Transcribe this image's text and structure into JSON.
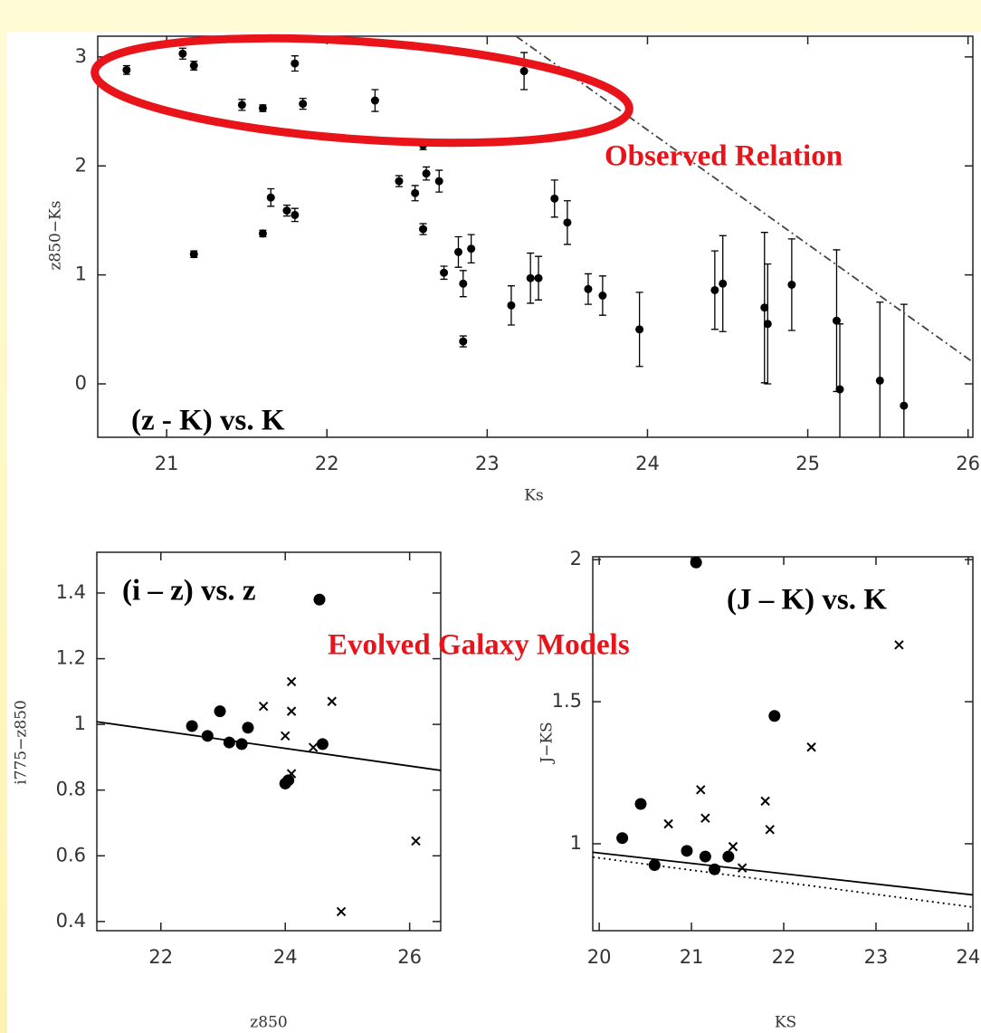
{
  "slide_labels": [
    "Evolved Galaxy Models"
  ],
  "chart_data": [
    {
      "type": "scatter",
      "xlabel": "Ks",
      "ylabel": "z850−Ks",
      "xlim": [
        20.57,
        26.03
      ],
      "ylim": [
        -0.49,
        3.19
      ],
      "xticks": [
        21,
        22,
        23,
        24,
        25,
        26
      ],
      "yticks": [
        0,
        1,
        2,
        3
      ],
      "annotations": [
        {
          "text": "Observed Relation",
          "color": "#e8141a"
        },
        {
          "text": "(z - K) vs. K",
          "color": "#000000"
        }
      ],
      "series": [
        {
          "marker": "dot",
          "color": "#000000",
          "x": [
            20.75,
            21.1,
            21.17,
            21.17,
            21.47,
            21.6,
            21.6,
            21.65,
            21.75,
            21.8,
            21.8,
            21.85,
            22.3,
            22.45,
            22.55,
            22.6,
            22.6,
            22.62,
            22.7,
            22.73,
            22.82,
            22.85,
            22.85,
            22.9,
            23.15,
            23.23,
            23.27,
            23.32,
            23.42,
            23.5,
            23.63,
            23.72,
            23.95,
            24.42,
            24.47,
            24.73,
            24.75,
            24.9,
            25.18,
            25.2,
            25.45,
            25.6
          ],
          "values": [
            2.88,
            3.03,
            2.92,
            1.19,
            2.56,
            2.53,
            1.38,
            1.71,
            1.59,
            2.94,
            1.55,
            2.57,
            2.6,
            1.86,
            1.75,
            2.19,
            1.42,
            1.93,
            1.86,
            1.02,
            1.21,
            0.92,
            0.39,
            1.24,
            0.72,
            2.87,
            0.97,
            0.97,
            1.7,
            1.48,
            0.87,
            0.81,
            0.5,
            0.86,
            0.92,
            0.7,
            0.55,
            0.91,
            0.58,
            -0.05,
            0.03,
            -0.2
          ],
          "errors": [
            0.04,
            0.05,
            0.04,
            0.03,
            0.05,
            0.03,
            0.03,
            0.08,
            0.05,
            0.07,
            0.06,
            0.05,
            0.1,
            0.05,
            0.07,
            0.04,
            0.05,
            0.06,
            0.1,
            0.06,
            0.14,
            0.12,
            0.05,
            0.13,
            0.18,
            0.17,
            0.23,
            0.2,
            0.17,
            0.2,
            0.14,
            0.18,
            0.34,
            0.36,
            0.44,
            0.69,
            0.55,
            0.42,
            0.65,
            0.6,
            0.72,
            0.93
          ]
        },
        {
          "marker": "line",
          "style": "dashdot",
          "color": "#444444",
          "x": [
            23.18,
            26.03
          ],
          "values": [
            3.19,
            0.2
          ]
        }
      ]
    },
    {
      "type": "scatter",
      "xlabel": "z850",
      "ylabel": "i775−z850",
      "xlim": [
        20.97,
        26.5
      ],
      "ylim": [
        0.372,
        1.524
      ],
      "xticks": [
        22,
        24,
        26
      ],
      "yticks": [
        0.4,
        0.6,
        0.8,
        1,
        1.2,
        1.4
      ],
      "annotations": [
        {
          "text": "(i – z) vs. z",
          "color": "#000000"
        }
      ],
      "series": [
        {
          "marker": "dot",
          "color": "#000000",
          "x": [
            22.5,
            22.75,
            22.95,
            23.1,
            23.3,
            23.4,
            24.0,
            24.05,
            24.6,
            24.55
          ],
          "values": [
            0.995,
            0.965,
            1.04,
            0.945,
            0.94,
            0.99,
            0.82,
            0.83,
            0.94,
            1.38
          ]
        },
        {
          "marker": "cross",
          "color": "#000000",
          "x": [
            23.65,
            24.1,
            24.1,
            24.0,
            24.1,
            24.45,
            24.75,
            24.9,
            26.1
          ],
          "values": [
            1.055,
            1.13,
            1.04,
            0.965,
            0.85,
            0.93,
            1.07,
            0.43,
            0.645
          ]
        },
        {
          "marker": "line",
          "style": "solid",
          "color": "#000000",
          "x": [
            20.97,
            26.5
          ],
          "values": [
            1.008,
            0.86
          ]
        }
      ]
    },
    {
      "type": "scatter",
      "xlabel": "KS",
      "ylabel": "J−KS",
      "xlim": [
        19.93,
        24.05
      ],
      "ylim": [
        0.694,
        2.01
      ],
      "xticks": [
        20,
        21,
        22,
        23,
        24
      ],
      "yticks": [
        1,
        1.5,
        2
      ],
      "annotations": [
        {
          "text": "(J – K)  vs. K",
          "color": "#000000"
        }
      ],
      "series": [
        {
          "marker": "dot",
          "color": "#000000",
          "x": [
            20.25,
            20.45,
            20.6,
            20.95,
            21.05,
            21.15,
            21.25,
            21.4,
            21.9
          ],
          "values": [
            1.02,
            1.14,
            0.925,
            0.975,
            1.99,
            0.955,
            0.91,
            0.955,
            1.45
          ]
        },
        {
          "marker": "cross",
          "color": "#000000",
          "x": [
            20.75,
            21.1,
            21.15,
            21.45,
            21.55,
            21.8,
            21.85,
            22.3,
            23.25
          ],
          "values": [
            1.07,
            1.19,
            1.09,
            0.99,
            0.915,
            1.15,
            1.05,
            1.34,
            1.7
          ]
        },
        {
          "marker": "line",
          "style": "solid",
          "color": "#000000",
          "x": [
            19.93,
            24.05
          ],
          "values": [
            0.97,
            0.82
          ]
        },
        {
          "marker": "line",
          "style": "dotted",
          "color": "#000000",
          "x": [
            19.93,
            24.05
          ],
          "values": [
            0.953,
            0.777
          ]
        }
      ]
    }
  ]
}
